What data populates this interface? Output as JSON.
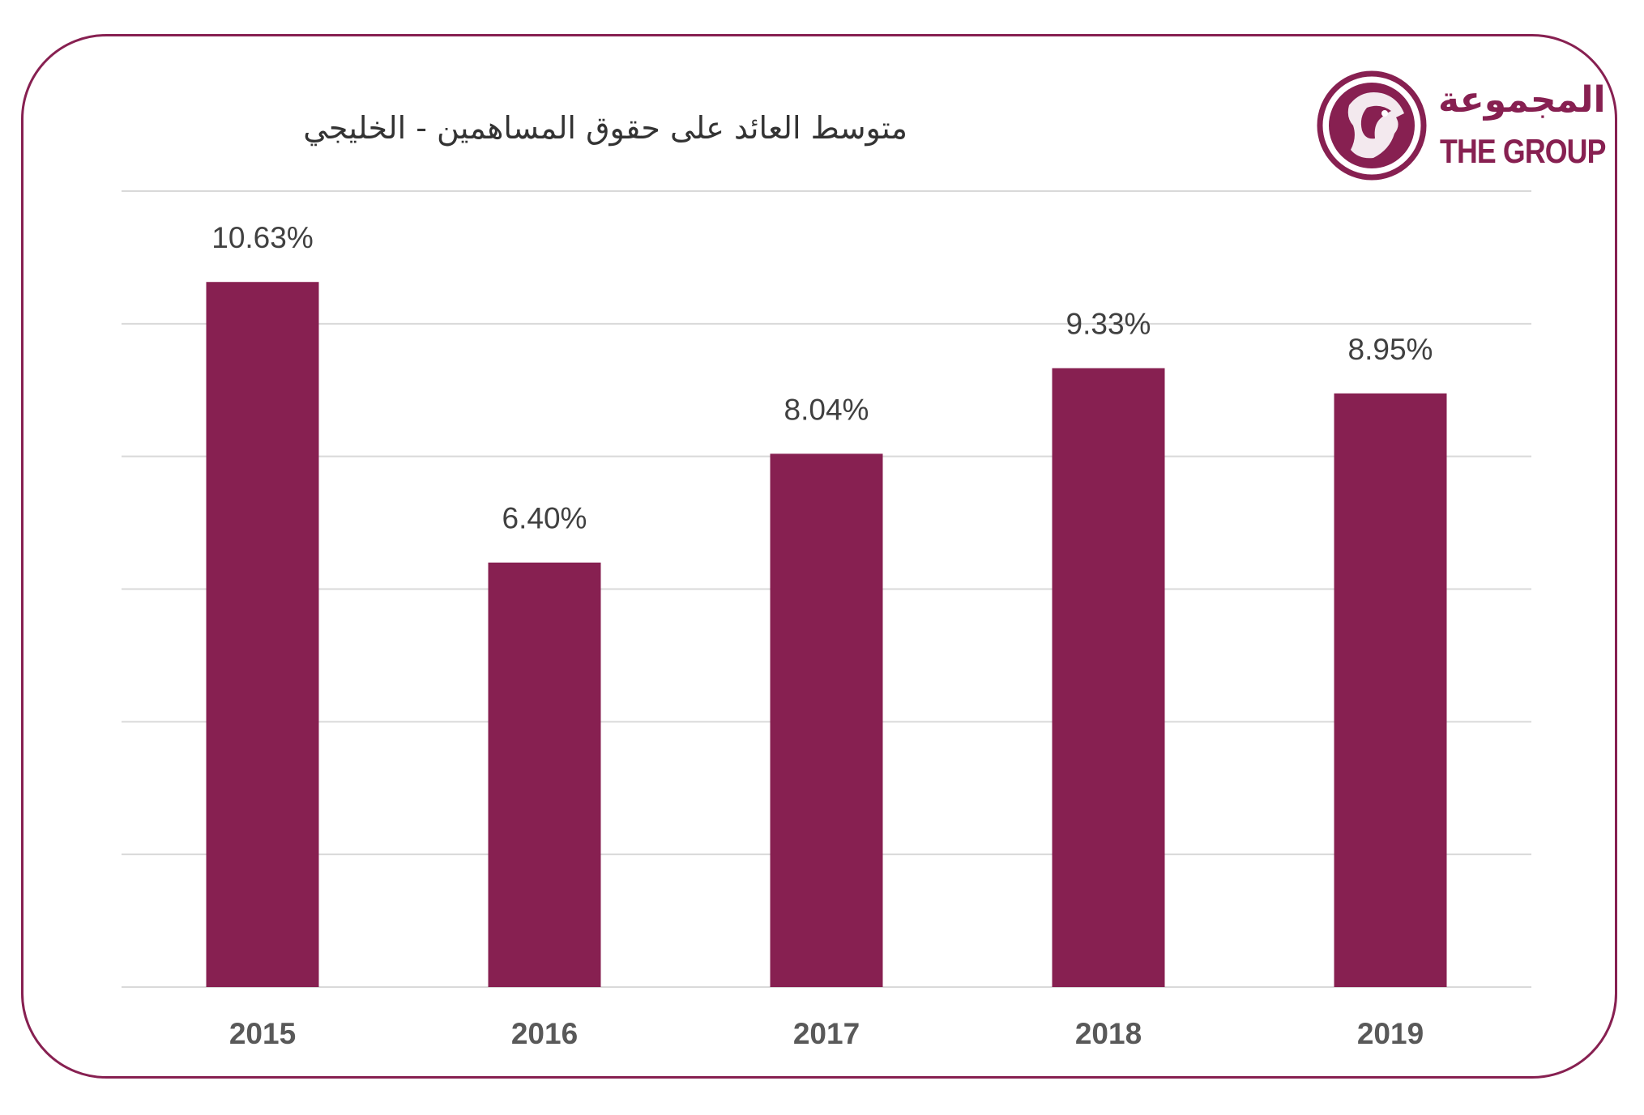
{
  "chart_data": {
    "type": "bar",
    "title": "متوسط العائد على حقوق المساهمين - الخليجي",
    "categories": [
      "2015",
      "2016",
      "2017",
      "2018",
      "2019"
    ],
    "values": [
      10.63,
      6.4,
      8.04,
      9.33,
      8.95
    ],
    "data_labels": [
      "10.63%",
      "6.40%",
      "8.04%",
      "9.33%",
      "8.95%"
    ],
    "xlabel": "",
    "ylabel": "",
    "ylim": [
      0,
      12
    ],
    "y_gridlines": [
      0,
      2,
      4,
      6,
      8,
      10,
      12
    ],
    "y_tick_labels_shown": false,
    "grid": true,
    "legend": "none"
  },
  "logo": {
    "arabic": "المجموعة",
    "english": "THE GROUP",
    "icon": "falcon-emblem-icon"
  },
  "colors": {
    "bar": "#872051",
    "frame": "#872051",
    "gridline": "#d9d9d9",
    "brand": "#872051"
  }
}
